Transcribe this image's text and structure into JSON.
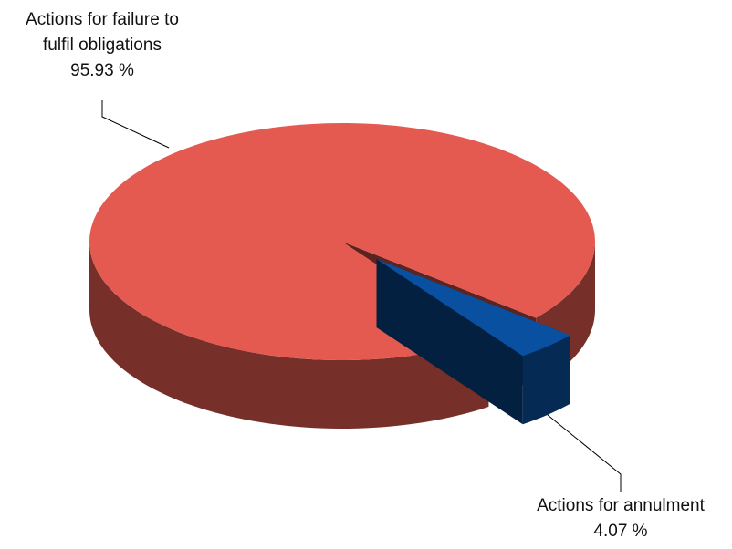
{
  "chart_data": {
    "type": "pie",
    "categories": [
      "Actions for failure to fulfil obligations",
      "Actions for annulment"
    ],
    "values": [
      95.93,
      4.07
    ],
    "value_labels": [
      "95.93 %",
      "4.07 %"
    ],
    "colors": [
      "#e55a50",
      "#0a50a0"
    ]
  }
}
